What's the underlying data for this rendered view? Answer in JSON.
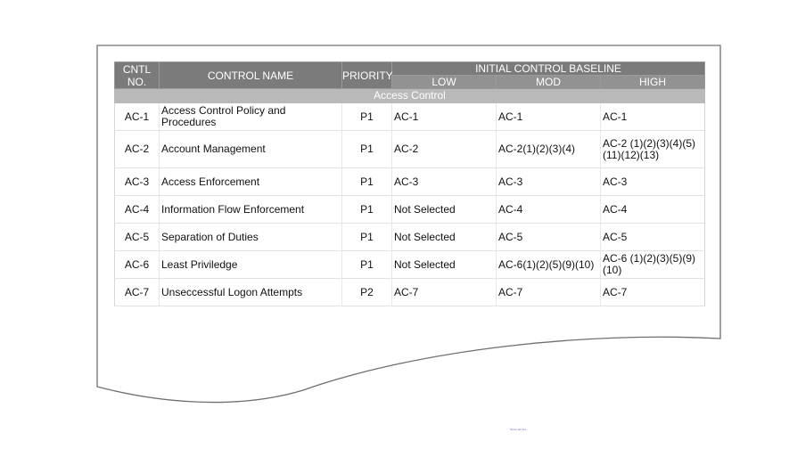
{
  "table": {
    "headers": {
      "cntl_no": "CNTL NO.",
      "control_name": "CONTROL NAME",
      "priority": "PRIORITY",
      "baseline": "INITIAL CONTROL BASELINE",
      "low": "LOW",
      "mod": "MOD",
      "high": "HIGH"
    },
    "section": "Access Control",
    "rows": [
      {
        "id": "AC-1",
        "name": "Access Control Policy and Procedures",
        "priority": "P1",
        "low": "AC-1",
        "mod": "AC-1",
        "high": "AC-1"
      },
      {
        "id": "AC-2",
        "name": "Account Management",
        "priority": "P1",
        "low": "AC-2",
        "mod": "AC-2(1)(2)(3)(4)",
        "high": "AC-2 (1)(2)(3)(4)(5)(11)(12)(13)"
      },
      {
        "id": "AC-3",
        "name": "Access Enforcement",
        "priority": "P1",
        "low": "AC-3",
        "mod": "AC-3",
        "high": "AC-3"
      },
      {
        "id": "AC-4",
        "name": "Information Flow Enforcement",
        "priority": "P1",
        "low": "Not Selected",
        "mod": "AC-4",
        "high": "AC-4"
      },
      {
        "id": "AC-5",
        "name": "Separation of Duties",
        "priority": "P1",
        "low": "Not Selected",
        "mod": "AC-5",
        "high": "AC-5"
      },
      {
        "id": "AC-6",
        "name": "Least Priviledge",
        "priority": "P1",
        "low": "Not Selected",
        "mod": "AC-6(1)(2)(5)(9)(10)",
        "high": "AC-6 (1)(2)(3)(5)(9)(10)"
      },
      {
        "id": "AC-7",
        "name": "Unseccessful Logon Attempts",
        "priority": "P2",
        "low": "AC-7",
        "mod": "AC-7",
        "high": "AC-7"
      }
    ]
  },
  "footer_mark": "Never fair fine"
}
